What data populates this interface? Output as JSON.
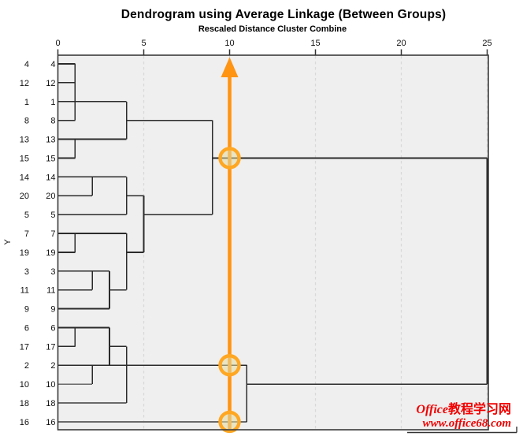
{
  "header": {
    "title": "Dendrogram using Average Linkage (Between Groups)",
    "subtitle": "Rescaled Distance Cluster Combine"
  },
  "watermark": {
    "line1_latin": "Office",
    "line1_cjk": "教程学习网",
    "line2": "www.office68.com",
    "color": "#f00000"
  },
  "colors": {
    "plot_bg": "#efefef",
    "frame": "#3a3a3a",
    "grid": "#d9d9d9",
    "dendro_line": "#2b2b2b",
    "dendro_line_light": "#6a6a6a",
    "reference_orange": "#ff9412",
    "arrow_orange": "#ff9412",
    "circle_ring": "#ffa722",
    "circle_fill": "rgba(225,219,160,0.55)",
    "text": "#111111"
  },
  "chart_data": {
    "type": "dendrogram",
    "title": "Dendrogram using Average Linkage (Between Groups)",
    "subtitle": "Rescaled Distance Cluster Combine",
    "x_axis": {
      "label": "Rescaled Distance Cluster Combine",
      "range": [
        0,
        25
      ],
      "ticks": [
        0,
        5,
        10,
        15,
        20,
        25
      ],
      "gridlines": [
        5,
        10,
        15,
        20,
        25
      ],
      "grid_style": "dashed"
    },
    "y_axis": {
      "title": "Y",
      "leaf_order_top_to_bottom": [
        "4",
        "12",
        "1",
        "8",
        "13",
        "15",
        "14",
        "20",
        "5",
        "7",
        "19",
        "3",
        "11",
        "9",
        "6",
        "17",
        "2",
        "10",
        "18",
        "16"
      ]
    },
    "joins": [
      {
        "members": [
          "4",
          "12",
          "8"
        ],
        "distance": 1
      },
      {
        "members": [
          "13",
          "15"
        ],
        "distance": 1
      },
      {
        "members": [
          "7",
          "19"
        ],
        "distance": 1
      },
      {
        "members": [
          "6",
          "17"
        ],
        "distance": 1
      },
      {
        "members": [
          "14",
          "20"
        ],
        "distance": 2
      },
      {
        "members": [
          "3",
          "11"
        ],
        "distance": 2
      },
      {
        "members": [
          "2",
          "10"
        ],
        "distance": 2
      },
      {
        "members": [
          "3,11",
          "9"
        ],
        "distance": 3
      },
      {
        "members": [
          "6,17",
          "2,10"
        ],
        "distance": 3
      },
      {
        "members": [
          "4,12,8",
          "1"
        ],
        "distance": 4
      },
      {
        "members": [
          "4,12,8,1",
          "13,15"
        ],
        "distance": 4
      },
      {
        "members": [
          "14,20",
          "5"
        ],
        "distance": 4
      },
      {
        "members": [
          "7,19",
          "3,11,9"
        ],
        "distance": 4
      },
      {
        "members": [
          "6,17,2,10",
          "18"
        ],
        "distance": 4
      },
      {
        "members": [
          "14,20,5",
          "7,19,3,11,9"
        ],
        "distance": 5
      },
      {
        "members": [
          "top-cluster",
          "middle-cluster"
        ],
        "distance": 9
      },
      {
        "members": [
          "bottom-cluster",
          "16"
        ],
        "distance": 11
      },
      {
        "members": [
          "all-top",
          "all-bottom"
        ],
        "distance": 25
      }
    ],
    "segments": [
      {
        "o": "h",
        "r": 1,
        "a": 0,
        "b": 1
      },
      {
        "o": "h",
        "r": 2,
        "a": 0,
        "b": 1
      },
      {
        "o": "h",
        "r": 3,
        "a": 0,
        "b": 4
      },
      {
        "o": "h",
        "r": 4,
        "a": 0,
        "b": 1
      },
      {
        "o": "h",
        "r": 4,
        "a": 4,
        "b": 9
      },
      {
        "o": "h",
        "r": 5,
        "a": 0,
        "b": 4
      },
      {
        "o": "h",
        "r": 6,
        "a": 0,
        "b": 1
      },
      {
        "o": "h",
        "r": 6,
        "a": 9,
        "b": 25
      },
      {
        "o": "h",
        "r": 7,
        "a": 0,
        "b": 4
      },
      {
        "o": "h",
        "r": 8,
        "a": 0,
        "b": 2
      },
      {
        "o": "h",
        "r": 8,
        "a": 4,
        "b": 5
      },
      {
        "o": "h",
        "r": 9,
        "a": 0,
        "b": 4
      },
      {
        "o": "h",
        "r": 9,
        "a": 5,
        "b": 9
      },
      {
        "o": "h",
        "r": 10,
        "a": 0,
        "b": 4
      },
      {
        "o": "h",
        "r": 11,
        "a": 0,
        "b": 1
      },
      {
        "o": "h",
        "r": 11,
        "a": 4,
        "b": 5
      },
      {
        "o": "h",
        "r": 12,
        "a": 0,
        "b": 3
      },
      {
        "o": "h",
        "r": 13,
        "a": 0,
        "b": 2
      },
      {
        "o": "h",
        "r": 13,
        "a": 3,
        "b": 4
      },
      {
        "o": "h",
        "r": 14,
        "a": 0,
        "b": 3
      },
      {
        "o": "h",
        "r": 15,
        "a": 0,
        "b": 3
      },
      {
        "o": "h",
        "r": 16,
        "a": 0,
        "b": 1
      },
      {
        "o": "h",
        "r": 16,
        "a": 3,
        "b": 4
      },
      {
        "o": "h",
        "r": 17,
        "a": 0,
        "b": 11
      },
      {
        "o": "h",
        "r": 18,
        "a": 0,
        "b": 2,
        "light": true
      },
      {
        "o": "h",
        "r": 18,
        "a": 11,
        "b": 25
      },
      {
        "o": "h",
        "r": 19,
        "a": 0,
        "b": 4,
        "light": true
      },
      {
        "o": "h",
        "r": 20,
        "a": 0,
        "b": 11,
        "light": true
      },
      {
        "o": "v",
        "d": 1,
        "a": 1,
        "b": 4
      },
      {
        "o": "v",
        "d": 1,
        "a": 5,
        "b": 6
      },
      {
        "o": "v",
        "d": 4,
        "a": 3,
        "b": 5
      },
      {
        "o": "v",
        "d": 2,
        "a": 7,
        "b": 8
      },
      {
        "o": "v",
        "d": 4,
        "a": 7,
        "b": 9
      },
      {
        "o": "v",
        "d": 5,
        "a": 8,
        "b": 11
      },
      {
        "o": "v",
        "d": 9,
        "a": 4,
        "b": 9
      },
      {
        "o": "v",
        "d": 1,
        "a": 10,
        "b": 11
      },
      {
        "o": "v",
        "d": 4,
        "a": 10,
        "b": 13
      },
      {
        "o": "v",
        "d": 2,
        "a": 12,
        "b": 13
      },
      {
        "o": "v",
        "d": 3,
        "a": 12,
        "b": 14
      },
      {
        "o": "v",
        "d": 1,
        "a": 15,
        "b": 16
      },
      {
        "o": "v",
        "d": 3,
        "a": 15,
        "b": 17
      },
      {
        "o": "v",
        "d": 2,
        "a": 17,
        "b": 18
      },
      {
        "o": "v",
        "d": 4,
        "a": 16,
        "b": 19
      },
      {
        "o": "v",
        "d": 11,
        "a": 17,
        "b": 20
      },
      {
        "o": "v",
        "d": 25,
        "a": 6,
        "b": 18
      }
    ],
    "cut_line": {
      "distance": 10,
      "arrow_at_top": true,
      "handle_rows": [
        6,
        17,
        20
      ],
      "handle_row_labels": [
        "15",
        "2",
        "16"
      ]
    },
    "legend": null,
    "grid_on": true
  },
  "layout_note": {
    "row_label_columns": 2
  }
}
